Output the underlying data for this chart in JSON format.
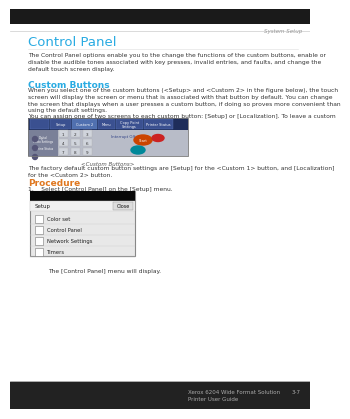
{
  "bg_color": "#ffffff",
  "header_text": "System Setup",
  "header_color": "#999999",
  "title": "Control Panel",
  "title_color": "#29abe2",
  "title_fontsize": 9.5,
  "body_text1": "The Control Panel options enable you to the change the functions of the custom buttons, enable or\ndisable the audible tones associated with key presses, invalid entries, and faults, and change the\ndefault touch screen display.",
  "section1_title": "Custom Buttons",
  "section1_color": "#29abe2",
  "section1_fontsize": 6.5,
  "body_text2": "When you select one of the custom buttons (<Setup> and <Custom 2> in the figure below), the touch\nscreen will display the screen or menu that is associated with that button by default. You can change\nthe screen that displays when a user presses a custom button, if doing so proves more convenient than\nusing the default settings.",
  "body_text3": "You can assign one of two screens to each custom button: [Setup] or [Localization]. To leave a custom\nbutton unassigned, select [Not Entered].",
  "caption1": "<Custom Buttons>",
  "body_text4": "The factory default custom button settings are [Setup] for the <Custom 1> button, and [Localization]\nfor the <Custom 2> button.",
  "section2_title": "Procedure",
  "section2_color": "#e07820",
  "section2_fontsize": 6.5,
  "step1": "1.    Select [Control Panel] on the [Setup] menu.",
  "menu_items_line1": "Color set",
  "menu_items_line2": "Control Panel",
  "menu_items_line3": "Network Settings",
  "menu_items_line4": "Timers",
  "caption2": "The [Control Panel] menu will display.",
  "footer_left": "Xerox 6204 Wide Format Solution",
  "footer_left2": "Printer User Guide",
  "footer_right": "3-7",
  "body_fontsize": 4.3,
  "footer_fontsize": 4.0,
  "ml": 0.07,
  "mr": 0.97
}
